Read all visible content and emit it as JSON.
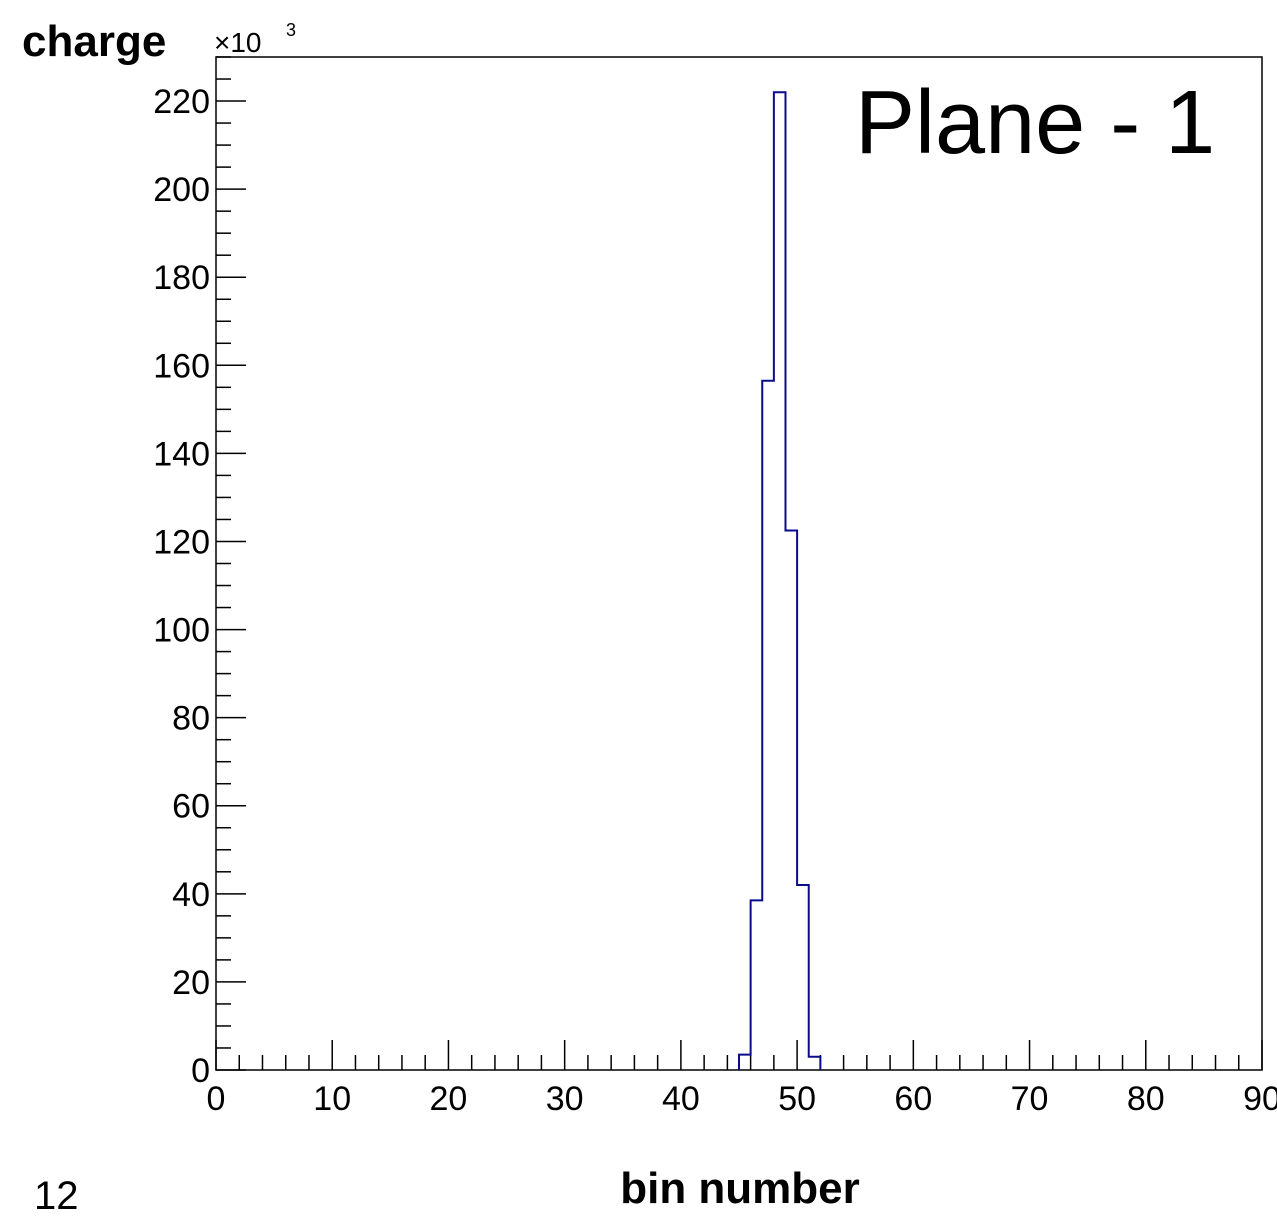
{
  "page_number": "12",
  "chart_data": {
    "type": "bar",
    "title": "Plane - 1",
    "xlabel": "bin number",
    "ylabel": "charge",
    "y_multiplier": "×10",
    "y_multiplier_exp": "3",
    "xlim": [
      0,
      90
    ],
    "ylim": [
      0,
      230
    ],
    "x_ticks": [
      "0",
      "10",
      "20",
      "30",
      "40",
      "50",
      "60",
      "70",
      "80",
      "90"
    ],
    "y_ticks": [
      "0",
      "20",
      "40",
      "60",
      "80",
      "100",
      "120",
      "140",
      "160",
      "180",
      "200",
      "220"
    ],
    "bin_width": 1,
    "bins": [
      {
        "x_low": 45,
        "value": 3.5
      },
      {
        "x_low": 46,
        "value": 38.5
      },
      {
        "x_low": 47,
        "value": 156.5
      },
      {
        "x_low": 48,
        "value": 222
      },
      {
        "x_low": 49,
        "value": 122.5
      },
      {
        "x_low": 50,
        "value": 42
      },
      {
        "x_low": 51,
        "value": 3
      }
    ],
    "line_color": "#0b0b8c",
    "grid": false
  }
}
